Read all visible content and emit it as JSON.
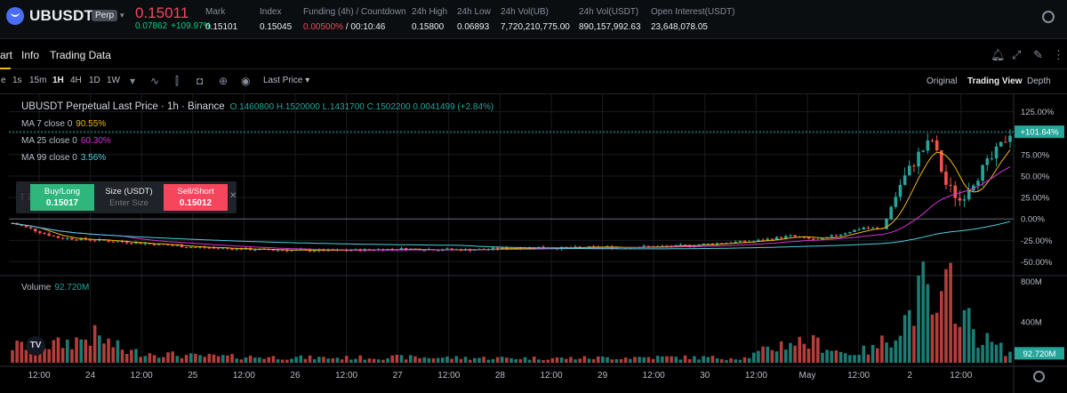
{
  "ticker": {
    "symbol": "UBUSDT",
    "badge": "Perp",
    "last_price": "0.15011",
    "change_abs": "0.07862",
    "change_pct": "+109.97%",
    "stats": [
      {
        "label": "Mark",
        "value": "0.15101"
      },
      {
        "label": "Index",
        "value": "0.15045"
      },
      {
        "label": "Funding (4h) / Countdown",
        "value_neg": "0.00500%",
        "value": "/ 00:10:46"
      },
      {
        "label": "24h High",
        "value": "0.15800"
      },
      {
        "label": "24h Low",
        "value": "0.06893"
      },
      {
        "label": "24h Vol(UB)",
        "value": "7,720,210,775.00"
      },
      {
        "label": "24h Vol(USDT)",
        "value": "890,157,992.63"
      },
      {
        "label": "Open Interest(USDT)",
        "value": "23,648,078.05"
      }
    ]
  },
  "tabs": {
    "chart": "art",
    "info": "Info",
    "trading_data": "Trading Data"
  },
  "toolbar": {
    "intervals": [
      "e",
      "1s",
      "15m",
      "1H",
      "4H",
      "1D",
      "1W"
    ],
    "active_interval": "1H",
    "price_source": "Last Price",
    "views": [
      "Original",
      "Trading View",
      "Depth"
    ],
    "active_view": "Trading View"
  },
  "legend": {
    "title": "UBUSDT Perpetual Last Price · 1h · Binance",
    "ohlc": "O.1460800  H.1520000  L.1431700  C.1502200  0.0041499 (+2.84%)",
    "ma7_label": "MA 7 close 0",
    "ma7_value": "90.55%",
    "ma25_label": "MA 25 close 0",
    "ma25_value": "60.30%",
    "ma99_label": "MA 99 close 0",
    "ma99_value": "3.56%",
    "volume_label": "Volume",
    "volume_value": "92.720M"
  },
  "order_panel": {
    "buy_label": "Buy/Long",
    "buy_price": "0.15017",
    "size_label": "Size (USDT)",
    "size_placeholder": "Enter Size",
    "sell_label": "Sell/Short",
    "sell_price": "0.15012"
  },
  "colors": {
    "up": "#26a69a",
    "down": "#ef5350",
    "ma7": "#f0b90b",
    "ma25": "#d633d6",
    "ma99": "#4dd0e1",
    "grid": "#1a1d21",
    "axis_text": "#b7bdc6"
  },
  "chart_data": {
    "type": "candlestick",
    "price_axis": {
      "unit": "%",
      "ticks": [
        125,
        100,
        75,
        50,
        25,
        0,
        -25,
        -50
      ],
      "tick_labels": [
        "125.00%",
        "100.00%",
        "75.00%",
        "50.00%",
        "25.00%",
        "0.00%",
        "-25.00%",
        "-50.00%"
      ],
      "range": [
        -62,
        135
      ],
      "current_label": "+101.64%",
      "current_value": 101.64
    },
    "volume_axis": {
      "ticks": [
        800,
        400
      ],
      "tick_labels": [
        "800M",
        "400M"
      ],
      "range_max": 820,
      "current_label": "92.720M",
      "current_value": 92.72
    },
    "x_labels": [
      "12:00",
      "24",
      "12:00",
      "25",
      "12:00",
      "26",
      "12:00",
      "27",
      "12:00",
      "28",
      "12:00",
      "29",
      "12:00",
      "30",
      "12:00",
      "May",
      "12:00",
      "2",
      "12:00"
    ],
    "anchors": [
      [
        0,
        -5
      ],
      [
        10,
        -22
      ],
      [
        25,
        -27
      ],
      [
        40,
        -33
      ],
      [
        55,
        -36
      ],
      [
        70,
        -37
      ],
      [
        85,
        -35
      ],
      [
        100,
        -36
      ],
      [
        115,
        -33
      ],
      [
        120,
        -34
      ],
      [
        130,
        -33
      ],
      [
        145,
        -32
      ],
      [
        155,
        -28
      ],
      [
        162,
        -26
      ],
      [
        170,
        -20
      ],
      [
        176,
        -25
      ],
      [
        182,
        -16
      ],
      [
        186,
        -10
      ],
      [
        190,
        -12
      ],
      [
        194,
        40
      ],
      [
        198,
        75
      ],
      [
        201,
        92
      ],
      [
        204,
        40
      ],
      [
        207,
        22
      ],
      [
        210,
        45
      ],
      [
        214,
        70
      ],
      [
        216,
        85
      ],
      [
        218,
        101.64
      ]
    ],
    "volume_anchors": [
      [
        0,
        160
      ],
      [
        10,
        180
      ],
      [
        18,
        260
      ],
      [
        25,
        110
      ],
      [
        40,
        65
      ],
      [
        55,
        55
      ],
      [
        70,
        48
      ],
      [
        85,
        55
      ],
      [
        100,
        48
      ],
      [
        120,
        45
      ],
      [
        140,
        55
      ],
      [
        160,
        48
      ],
      [
        170,
        210
      ],
      [
        176,
        190
      ],
      [
        182,
        90
      ],
      [
        188,
        130
      ],
      [
        192,
        270
      ],
      [
        196,
        470
      ],
      [
        199,
        720
      ],
      [
        202,
        400
      ],
      [
        205,
        790
      ],
      [
        208,
        460
      ],
      [
        211,
        260
      ],
      [
        214,
        190
      ],
      [
        218,
        92.72
      ]
    ]
  }
}
